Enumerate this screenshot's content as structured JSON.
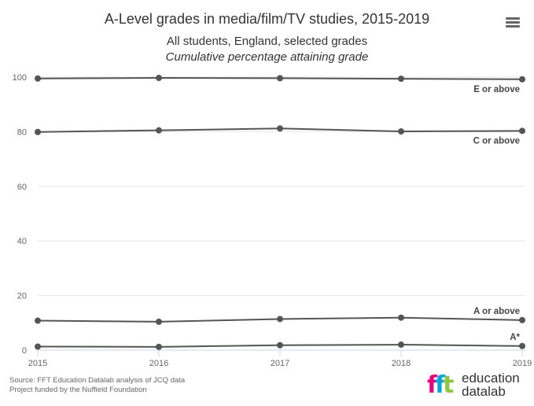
{
  "header": {
    "title": "A-Level grades in media/film/TV studies, 2015-2019",
    "subtitle": "All students, England, selected grades",
    "subtitle2": "Cumulative percentage attaining grade"
  },
  "menu": {
    "icon": "hamburger-menu-icon"
  },
  "credits": {
    "line1": "Source: FFT Education Datalab analysis of JCQ data",
    "line2": "Project funded by the Nuffield Foundation"
  },
  "logo": {
    "line1": "education",
    "line2": "datalab"
  },
  "colors": {
    "series": "#555555",
    "grid": "#e6e6e6",
    "axis": "#ccd6eb",
    "text": "#333333"
  },
  "chart_data": {
    "type": "line",
    "title": "A-Level grades in media/film/TV studies, 2015-2019",
    "subtitle": "All students, England, selected grades",
    "x": [
      2015,
      2016,
      2017,
      2018,
      2019
    ],
    "ylim": [
      0,
      100
    ],
    "yticks": [
      0,
      20,
      40,
      60,
      80,
      100
    ],
    "grid": true,
    "series": [
      {
        "name": "E or above",
        "values": [
          99.5,
          99.7,
          99.6,
          99.4,
          99.2
        ]
      },
      {
        "name": "C or above",
        "values": [
          79.9,
          80.5,
          81.2,
          80.1,
          80.3
        ]
      },
      {
        "name": "A or above",
        "values": [
          10.8,
          10.4,
          11.4,
          11.9,
          11.0
        ]
      },
      {
        "name": "A*",
        "values": [
          1.3,
          1.2,
          1.8,
          2.0,
          1.5
        ]
      }
    ]
  }
}
